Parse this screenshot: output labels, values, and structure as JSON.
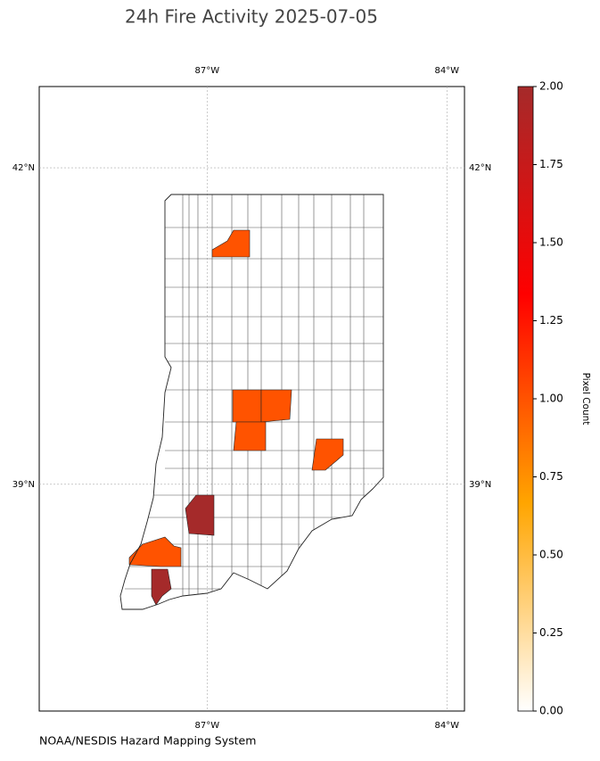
{
  "chart_data": {
    "type": "choropleth",
    "title": "24h Fire Activity 2025-07-05",
    "xlim": [
      -89.1,
      -83.78
    ],
    "ylim": [
      36.85,
      42.77
    ],
    "xticks": [
      {
        "value": -87,
        "label": "87°W"
      },
      {
        "value": -84,
        "label": "84°W"
      }
    ],
    "yticks": [
      {
        "value": 42,
        "label": "42°N"
      },
      {
        "value": 39,
        "label": "39°N"
      }
    ],
    "grid": true,
    "values": [
      1,
      1,
      1,
      1,
      1,
      2,
      1,
      2
    ],
    "colorbar": {
      "label": "Pixel Count",
      "lim": [
        0,
        2
      ],
      "ticks": [
        {
          "value": 0,
          "label": "0.00"
        },
        {
          "value": 0.25,
          "label": "0.25"
        },
        {
          "value": 0.5,
          "label": "0.50"
        },
        {
          "value": 0.75,
          "label": "0.75"
        },
        {
          "value": 1,
          "label": "1.00"
        },
        {
          "value": 1.25,
          "label": "1.25"
        },
        {
          "value": 1.5,
          "label": "1.50"
        },
        {
          "value": 1.75,
          "label": "1.75"
        },
        {
          "value": 2,
          "label": "2.00"
        }
      ],
      "colors": [
        "#ffffff",
        "#ffa500",
        "#ff0000",
        "#a52a2a"
      ]
    },
    "source": "NOAA/NESDIS Hazard Mapping System"
  }
}
